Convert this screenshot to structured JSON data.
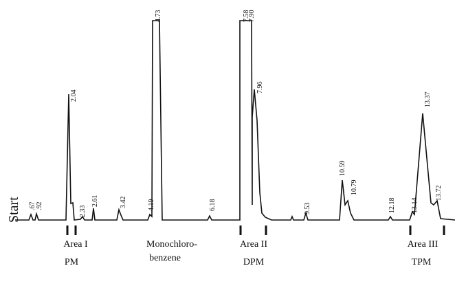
{
  "start_label": "Start",
  "peaks": [
    ".67",
    ".92",
    "2.04",
    "2.33",
    "2.61",
    "3.42",
    "4.19",
    "4.73",
    "6.18",
    "7.58",
    "7.90",
    "7.96",
    "9.53",
    "10.59",
    "10.79",
    "12.18",
    "13.14",
    "13.37",
    "13.72"
  ],
  "regions": [
    {
      "name": "Area I",
      "compound": "PM"
    },
    {
      "name": "Area II",
      "compound": "DPM"
    },
    {
      "name": "Area III",
      "compound": "TPM"
    }
  ],
  "solvent": [
    "Monochloro-",
    "benzene"
  ]
}
